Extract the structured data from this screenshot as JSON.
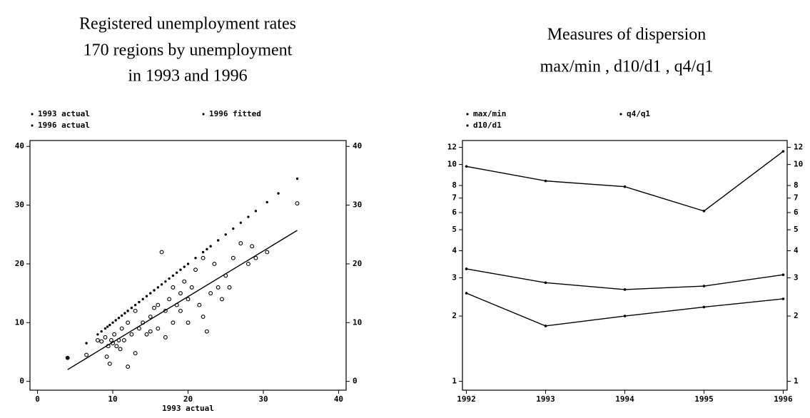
{
  "chart_data": [
    {
      "type": "scatter",
      "title": [
        "Registered unemployment rates",
        "170 regions by unemployment",
        "in 1993 and 1996"
      ],
      "xlabel": "1993 actual",
      "xlim": [
        -1,
        41
      ],
      "ylim": [
        -1.5,
        41
      ],
      "y2lim": [
        -1.5,
        41
      ],
      "xticks": [
        0,
        10,
        20,
        30,
        40
      ],
      "yticks": [
        0,
        10,
        20,
        30,
        40
      ],
      "y2ticks": [
        0,
        10,
        20,
        30,
        40
      ],
      "series": [
        {
          "name": "1993 actual",
          "mode": "markers",
          "marker": "dot",
          "color": "#000000",
          "x": [
            4,
            6.5,
            8,
            8.5,
            9,
            9.3,
            9.6,
            10,
            10.4,
            10.8,
            11.2,
            11.6,
            12,
            12.5,
            13,
            13.5,
            14,
            14.5,
            15,
            15.5,
            16,
            16.5,
            17,
            17.5,
            18,
            18.5,
            19,
            19.5,
            20,
            21,
            22,
            22.5,
            23,
            24,
            25,
            26,
            27,
            28,
            29,
            30.5,
            32,
            34.5
          ],
          "values": [
            4,
            6.5,
            8,
            8.5,
            9,
            9.3,
            9.6,
            10,
            10.4,
            10.8,
            11.2,
            11.6,
            12,
            12.5,
            13,
            13.5,
            14,
            14.5,
            15,
            15.5,
            16,
            16.5,
            17,
            17.5,
            18,
            18.5,
            19,
            19.5,
            20,
            21,
            22,
            22.5,
            23,
            24,
            25,
            26,
            27,
            28,
            29,
            30.5,
            32,
            34.5
          ]
        },
        {
          "name": "1996 actual",
          "mode": "markers",
          "marker": "circle",
          "color": "#000000",
          "x": [
            4,
            6.5,
            8,
            8.5,
            9,
            9.2,
            9.4,
            9.6,
            9.8,
            10,
            10.2,
            10.5,
            10.8,
            11,
            11.2,
            11.5,
            12,
            12,
            12.5,
            13,
            13,
            13.5,
            14,
            14.5,
            15,
            15,
            15.5,
            16,
            16,
            16.5,
            17,
            17,
            17.5,
            18,
            18,
            18.5,
            19,
            19,
            19.5,
            20,
            20,
            20.5,
            21,
            21.5,
            22,
            22,
            22.5,
            23,
            23.5,
            24,
            24.5,
            25,
            25.5,
            26,
            27,
            28,
            28.5,
            29,
            30.5,
            34.5
          ],
          "values": [
            4,
            4.5,
            7,
            6.8,
            7.5,
            4.2,
            6,
            3,
            7,
            6.5,
            8,
            6,
            7,
            5.5,
            9,
            7,
            2.5,
            10,
            8,
            4.8,
            12,
            9,
            10,
            8,
            11,
            8.5,
            12.5,
            9,
            13,
            22,
            12,
            7.5,
            14,
            10,
            16,
            13,
            12,
            15,
            17,
            14,
            10,
            16,
            19,
            13,
            21,
            11,
            8.5,
            15,
            20,
            16,
            14,
            18,
            16,
            21,
            23.5,
            20,
            23,
            21,
            22,
            30.3
          ]
        },
        {
          "name": "1996 fitted",
          "mode": "line",
          "color": "#000000",
          "x": [
            4,
            34.5
          ],
          "values": [
            2,
            25.7
          ]
        }
      ]
    },
    {
      "type": "line",
      "title": [
        "Measures of dispersion",
        "max/min , d10/d1 ,  q4/q1"
      ],
      "log_y": true,
      "x": [
        1992,
        1993,
        1994,
        1995,
        1996
      ],
      "xlim": [
        1991.95,
        1996.05
      ],
      "ylim": [
        0.91,
        12.9
      ],
      "y2lim": [
        0.91,
        12.9
      ],
      "xticks": [
        1992,
        1993,
        1994,
        1995,
        1996
      ],
      "yticks": [
        1,
        2,
        3,
        4,
        5,
        6,
        7,
        8,
        10,
        12
      ],
      "y2ticks": [
        1,
        2,
        3,
        4,
        5,
        6,
        7,
        8,
        10,
        12
      ],
      "series": [
        {
          "name": "max/min",
          "color": "#000000",
          "values": [
            9.8,
            8.4,
            7.9,
            6.1,
            11.5
          ]
        },
        {
          "name": "d10/d1",
          "color": "#000000",
          "values": [
            3.3,
            2.85,
            2.65,
            2.75,
            3.1
          ]
        },
        {
          "name": "q4/q1",
          "color": "#000000",
          "values": [
            2.55,
            1.8,
            2.0,
            2.2,
            2.4
          ]
        }
      ]
    }
  ]
}
